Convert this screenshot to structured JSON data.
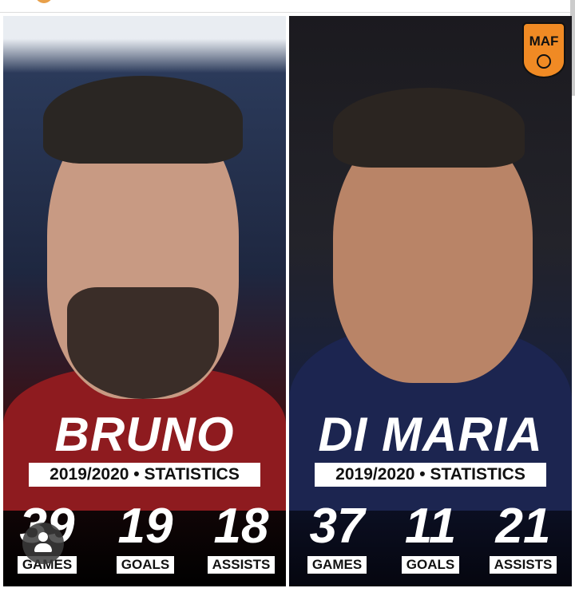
{
  "players": [
    {
      "name": "BRUNO",
      "season": "2019/2020 • STATISTICS",
      "stats": [
        {
          "value": "39",
          "label": "GAMES"
        },
        {
          "value": "19",
          "label": "GOALS"
        },
        {
          "value": "18",
          "label": "ASSISTS"
        }
      ]
    },
    {
      "name": "DI MARIA",
      "season": "2019/2020 • STATISTICS",
      "stats": [
        {
          "value": "37",
          "label": "GAMES"
        },
        {
          "value": "11",
          "label": "GOALS"
        },
        {
          "value": "21",
          "label": "ASSISTS"
        }
      ]
    }
  ],
  "logo": {
    "text": "MAF",
    "color": "#f08a24"
  },
  "icons": {
    "tag": "user-tag-icon"
  }
}
